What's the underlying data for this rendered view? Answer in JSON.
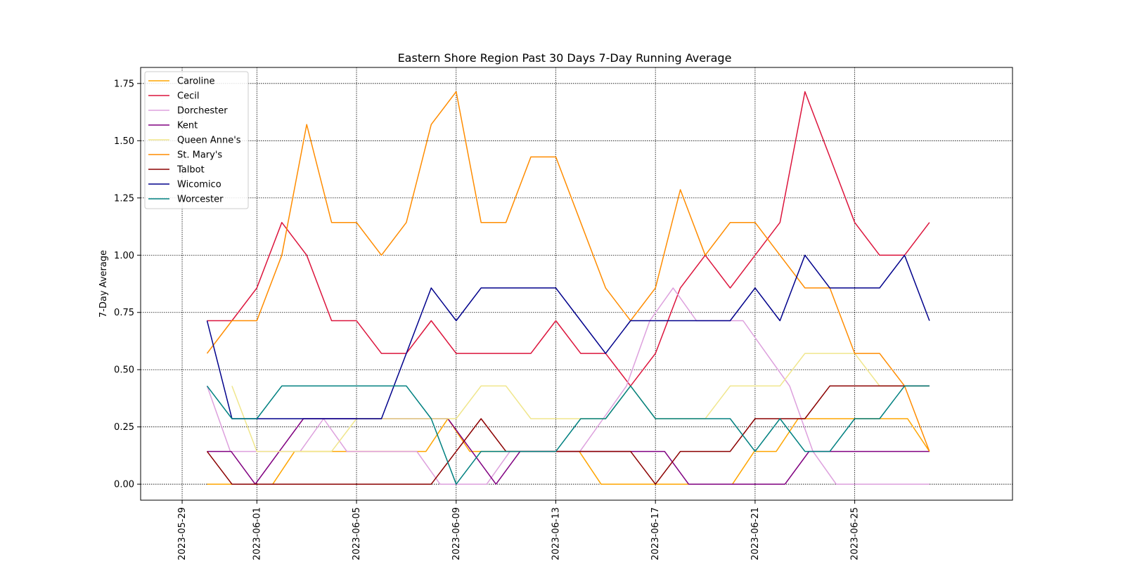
{
  "chart_data": {
    "type": "line",
    "title": "Eastern Shore Region Past 30 Days 7-Day Running Average",
    "xlabel": "",
    "ylabel": "7-Day Average",
    "x_start": "2023-05-30",
    "x_end": "2023-06-28",
    "xlim": [
      "2023-05-27T08:00",
      "2023-07-01T08:00"
    ],
    "ylim": [
      -0.07,
      1.82
    ],
    "x_ticks": [
      "2023-05-29",
      "2023-06-01",
      "2023-06-05",
      "2023-06-09",
      "2023-06-13",
      "2023-06-17",
      "2023-06-21",
      "2023-06-25"
    ],
    "y_ticks": [
      "0.00",
      "0.25",
      "0.50",
      "0.75",
      "1.00",
      "1.25",
      "1.50",
      "1.75"
    ],
    "grid": true,
    "legend_position": "upper left",
    "series": [
      {
        "name": "Caroline",
        "color": "#ffa500",
        "values": [
          0,
          0,
          0,
          0,
          0.143,
          0.143,
          0.143,
          0.143,
          0.143,
          0.143,
          0.143,
          0.286,
          0.143,
          0.143,
          0.143,
          0.143,
          0.143,
          0.143,
          0,
          0,
          0,
          0,
          0,
          0,
          0,
          0.143,
          0.143,
          0.286,
          0.286,
          0.286,
          0.286,
          0.286,
          0.286,
          0.143
        ]
      },
      {
        "name": "Cecil",
        "color": "#dc143c",
        "values": [
          0.714,
          0.714,
          0.857,
          1.143,
          1,
          0.714,
          0.714,
          0.571,
          0.571,
          0.714,
          0.571,
          0.571,
          0.571,
          0.571,
          0.714,
          0.571,
          0.571,
          0.429,
          0.571,
          0.857,
          1,
          0.857,
          1,
          1.143,
          1.714,
          1.429,
          1.143,
          1,
          1,
          1.143
        ]
      },
      {
        "name": "Dorchester",
        "color": "#dda0dd",
        "values": [
          0.429,
          0.143,
          0.143,
          0.143,
          0.143,
          0.286,
          0.143,
          0.143,
          0.143,
          0.143,
          0,
          0,
          0,
          0.143,
          0.143,
          0.143,
          0.143,
          0.286,
          0.429,
          0.714,
          0.857,
          0.714,
          0.714,
          0.714,
          0.571,
          0.429,
          0.143,
          0,
          0,
          0,
          0,
          0
        ]
      },
      {
        "name": "Kent",
        "color": "#800080",
        "values": [
          0.143,
          0.143,
          0,
          0.143,
          0.286,
          0.286,
          0.286,
          0.286,
          0.286,
          0.286,
          0.286,
          0.143,
          0,
          0.143,
          0.143,
          0.143,
          0.143,
          0.143,
          0.143,
          0.143,
          0,
          0,
          0,
          0,
          0,
          0.143,
          0.143,
          0.143,
          0.143,
          0.143,
          0.143
        ]
      },
      {
        "name": "Queen Anne's",
        "color": "#f0e68c",
        "values": [
          0.429,
          0.143,
          0.143,
          0.143,
          0.143,
          0.286,
          0.286,
          0.286,
          0.286,
          0.286,
          0.429,
          0.429,
          0.286,
          0.286,
          0.286,
          0.286,
          0.429,
          0.286,
          0.286,
          0.286,
          0.429,
          0.429,
          0.429,
          0.571,
          0.571,
          0.571,
          0.429,
          0.429,
          0.429
        ]
      },
      {
        "name": "St. Mary's",
        "color": "#ff8c00",
        "values": [
          0.571,
          0.714,
          0.714,
          1,
          1.571,
          1.143,
          1.143,
          1,
          1.143,
          1.571,
          1.714,
          1.143,
          1.143,
          1.429,
          1.429,
          1.143,
          0.857,
          0.714,
          0.857,
          1.286,
          1,
          1.143,
          1.143,
          1,
          0.857,
          0.857,
          0.571,
          0.571,
          0.429,
          0.143
        ]
      },
      {
        "name": "Talbot",
        "color": "#8b0000",
        "values": [
          0.143,
          0,
          0,
          0,
          0,
          0,
          0,
          0,
          0,
          0,
          0.143,
          0.286,
          0.143,
          0.143,
          0.143,
          0.143,
          0.143,
          0.143,
          0,
          0.143,
          0.143,
          0.143,
          0.286,
          0.286,
          0.286,
          0.429,
          0.429,
          0.429,
          0.429,
          0.429
        ]
      },
      {
        "name": "Wicomico",
        "color": "#00008b",
        "values": [
          0.714,
          0.286,
          0.286,
          0.286,
          0.286,
          0.286,
          0.286,
          0.286,
          0.571,
          0.857,
          0.714,
          0.857,
          0.857,
          0.857,
          0.857,
          0.714,
          0.571,
          0.714,
          0.714,
          0.714,
          0.714,
          0.714,
          0.857,
          0.714,
          1,
          0.857,
          0.857,
          0.857,
          1,
          0.714
        ]
      },
      {
        "name": "Worcester",
        "color": "#008080",
        "values": [
          0.429,
          0.286,
          0.286,
          0.429,
          0.429,
          0.429,
          0.429,
          0.429,
          0.429,
          0.286,
          0,
          0.143,
          0.143,
          0.143,
          0.143,
          0.286,
          0.286,
          0.429,
          0.286,
          0.286,
          0.286,
          0.286,
          0.143,
          0.286,
          0.143,
          0.143,
          0.286,
          0.286,
          0.429,
          0.429
        ]
      }
    ]
  }
}
